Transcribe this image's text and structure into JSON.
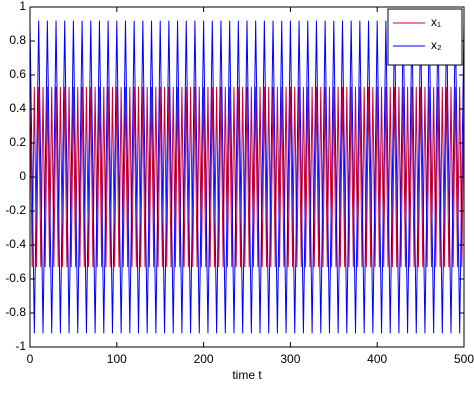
{
  "chart_data": {
    "type": "line",
    "xlabel": "time t",
    "xlim": [
      0,
      500
    ],
    "xticks": [
      0,
      100,
      200,
      300,
      400,
      500
    ],
    "ylim": [
      -1,
      1
    ],
    "yticks": [
      -1,
      -0.8,
      -0.6,
      -0.4,
      -0.2,
      0,
      0.2,
      0.4,
      0.6,
      0.8,
      1
    ],
    "legend": "upper right",
    "series": [
      {
        "name": "x₁",
        "color": "#cc0033",
        "x": [
          0,
          2.5,
          5,
          7.5,
          10,
          12.5,
          15,
          17.5,
          20,
          22.5,
          25,
          27.5,
          30,
          32.5,
          35,
          37.5,
          40,
          42.5,
          45,
          47.5,
          50,
          52.5,
          55,
          57.5,
          60,
          62.5,
          65,
          67.5,
          70,
          72.5,
          75,
          77.5,
          80,
          82.5,
          85,
          87.5,
          90,
          92.5,
          95,
          97.5,
          100,
          102.5,
          105,
          107.5,
          110,
          112.5,
          115,
          117.5,
          120,
          122.5,
          125,
          127.5,
          130,
          132.5,
          135,
          137.5,
          140,
          142.5,
          145,
          147.5,
          150,
          152.5,
          155,
          157.5,
          160,
          162.5,
          165,
          167.5,
          170,
          172.5,
          175,
          177.5,
          180,
          182.5,
          185,
          187.5,
          190,
          192.5,
          195,
          197.5,
          200,
          202.5,
          205,
          207.5,
          210,
          212.5,
          215,
          217.5,
          220,
          222.5,
          225,
          227.5,
          230,
          232.5,
          235,
          237.5,
          240,
          242.5,
          245,
          247.5,
          250,
          252.5,
          255,
          257.5,
          260,
          262.5,
          265,
          267.5,
          270,
          272.5,
          275,
          277.5,
          280,
          282.5,
          285,
          287.5,
          290,
          292.5,
          295,
          297.5,
          300,
          302.5,
          305,
          307.5,
          310,
          312.5,
          315,
          317.5,
          320,
          322.5,
          325,
          327.5,
          330,
          332.5,
          335,
          337.5,
          340,
          342.5,
          345,
          347.5,
          350,
          352.5,
          355,
          357.5,
          360,
          362.5,
          365,
          367.5,
          370,
          372.5,
          375,
          377.5,
          380,
          382.5,
          385,
          387.5,
          390,
          392.5,
          395,
          397.5,
          400,
          402.5,
          405,
          407.5,
          410,
          412.5,
          415,
          417.5,
          420,
          422.5,
          425,
          427.5,
          430,
          432.5,
          435,
          437.5,
          440,
          442.5,
          445,
          447.5,
          450,
          452.5,
          455,
          457.5,
          460,
          462.5,
          465,
          467.5,
          470,
          472.5,
          475,
          477.5,
          480,
          482.5,
          485,
          487.5,
          490,
          492.5,
          495,
          497.5,
          500
        ],
        "values": [
          0.53,
          -0.53,
          0.53,
          -0.53,
          0.53,
          -0.53,
          0.53,
          -0.53,
          0.53,
          -0.53,
          0.53,
          -0.53,
          0.53,
          -0.53,
          0.53,
          -0.53,
          0.53,
          -0.53,
          0.53,
          -0.53,
          0.53,
          -0.53,
          0.53,
          -0.53,
          0.53,
          -0.53,
          0.53,
          -0.53,
          0.53,
          -0.53,
          0.53,
          -0.53,
          0.53,
          -0.53,
          0.53,
          -0.53,
          0.53,
          -0.53,
          0.53,
          -0.53,
          0.53,
          -0.53,
          0.53,
          -0.53,
          0.53,
          -0.53,
          0.53,
          -0.53,
          0.53,
          -0.53,
          0.53,
          -0.53,
          0.53,
          -0.53,
          0.53,
          -0.53,
          0.53,
          -0.53,
          0.53,
          -0.53,
          0.53,
          -0.53,
          0.53,
          -0.53,
          0.53,
          -0.53,
          0.53,
          -0.53,
          0.53,
          -0.53,
          0.53,
          -0.53,
          0.53,
          -0.53,
          0.53,
          -0.53,
          0.53,
          -0.53,
          0.53,
          -0.53,
          0.53,
          -0.53,
          0.53,
          -0.53,
          0.53,
          -0.53,
          0.53,
          -0.53,
          0.53,
          -0.53,
          0.53,
          -0.53,
          0.53,
          -0.53,
          0.53,
          -0.53,
          0.53,
          -0.53,
          0.53,
          -0.53,
          0.53,
          -0.53,
          0.53,
          -0.53,
          0.53,
          -0.53,
          0.53,
          -0.53,
          0.53,
          -0.53,
          0.53,
          -0.53,
          0.53,
          -0.53,
          0.53,
          -0.53,
          0.53,
          -0.53,
          0.53,
          -0.53,
          0.53,
          -0.53,
          0.53,
          -0.53,
          0.53,
          -0.53,
          0.53,
          -0.53,
          0.53,
          -0.53,
          0.53,
          -0.53,
          0.53,
          -0.53,
          0.53,
          -0.53,
          0.53,
          -0.53,
          0.53,
          -0.53,
          0.53,
          -0.53,
          0.53,
          -0.53,
          0.53,
          -0.53,
          0.53,
          -0.53,
          0.53,
          -0.53,
          0.53,
          -0.53,
          0.53,
          -0.53,
          0.53,
          -0.53,
          0.53,
          -0.53,
          0.53,
          -0.53,
          0.53,
          -0.53,
          0.53,
          -0.53,
          0.53,
          -0.53,
          0.53,
          -0.53,
          0.53,
          -0.53,
          0.53,
          -0.53,
          0.53,
          -0.53,
          0.53,
          -0.53,
          0.53,
          -0.53,
          0.53,
          -0.53,
          0.53,
          -0.53,
          0.53,
          -0.53,
          0.53,
          -0.53,
          0.53,
          -0.53,
          0.53,
          -0.53,
          0.53,
          -0.53,
          0.53,
          -0.53,
          0.53,
          -0.53,
          0.53,
          -0.53,
          0.53,
          -0.53,
          0.53
        ]
      },
      {
        "name": "x₂",
        "color": "#0000ff",
        "x": [
          0,
          5,
          10,
          15,
          20,
          25,
          30,
          35,
          40,
          45,
          50,
          55,
          60,
          65,
          70,
          75,
          80,
          85,
          90,
          95,
          100,
          105,
          110,
          115,
          120,
          125,
          130,
          135,
          140,
          145,
          150,
          155,
          160,
          165,
          170,
          175,
          180,
          185,
          190,
          195,
          200,
          205,
          210,
          215,
          220,
          225,
          230,
          235,
          240,
          245,
          250,
          255,
          260,
          265,
          270,
          275,
          280,
          285,
          290,
          295,
          300,
          305,
          310,
          315,
          320,
          325,
          330,
          335,
          340,
          345,
          350,
          355,
          360,
          365,
          370,
          375,
          380,
          385,
          390,
          395,
          400,
          405,
          410,
          415,
          420,
          425,
          430,
          435,
          440,
          445,
          450,
          455,
          460,
          465,
          470,
          475,
          480,
          485,
          490,
          495,
          500
        ],
        "values": [
          0.92,
          -0.92,
          0.92,
          -0.92,
          0.92,
          -0.92,
          0.92,
          -0.92,
          0.92,
          -0.92,
          0.92,
          -0.92,
          0.92,
          -0.92,
          0.92,
          -0.92,
          0.92,
          -0.92,
          0.92,
          -0.92,
          0.92,
          -0.92,
          0.92,
          -0.92,
          0.92,
          -0.92,
          0.92,
          -0.92,
          0.92,
          -0.92,
          0.92,
          -0.92,
          0.92,
          -0.92,
          0.92,
          -0.92,
          0.92,
          -0.92,
          0.92,
          -0.92,
          0.92,
          -0.92,
          0.92,
          -0.92,
          0.92,
          -0.92,
          0.92,
          -0.92,
          0.92,
          -0.92,
          0.92,
          -0.92,
          0.92,
          -0.92,
          0.92,
          -0.92,
          0.92,
          -0.92,
          0.92,
          -0.92,
          0.92,
          -0.92,
          0.92,
          -0.92,
          0.92,
          -0.92,
          0.92,
          -0.92,
          0.92,
          -0.92,
          0.92,
          -0.92,
          0.92,
          -0.92,
          0.92,
          -0.92,
          0.92,
          -0.92,
          0.92,
          -0.92,
          0.92,
          -0.92,
          0.92,
          -0.92,
          0.92,
          -0.92,
          0.92,
          -0.92,
          0.92,
          -0.92,
          0.92,
          -0.92,
          0.92,
          -0.92,
          0.92,
          -0.92,
          0.92,
          -0.92,
          0.92,
          -0.92,
          0.92
        ]
      }
    ]
  }
}
